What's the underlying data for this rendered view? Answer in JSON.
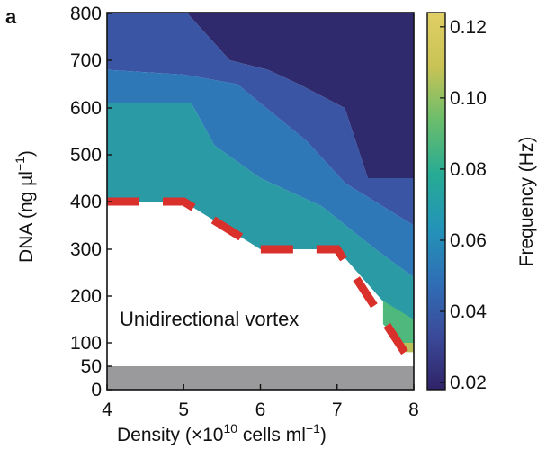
{
  "panel_label": "a",
  "chart_data": {
    "type": "heatmap",
    "xlabel": "Density (×10",
    "xlabel_sup": "10",
    "xlabel_tail": " cells ml",
    "xlabel_tail_sup": "−1",
    "xlabel_close": ")",
    "ylabel": "DNA (ng µl",
    "ylabel_sup": "−1",
    "ylabel_close": ")",
    "xlim": [
      4,
      8
    ],
    "ylim": [
      0,
      800
    ],
    "x_ticks": [
      "4",
      "5",
      "6",
      "7",
      "8"
    ],
    "y_ticks": [
      "0",
      "50",
      "100",
      "200",
      "300",
      "400",
      "500",
      "600",
      "700",
      "800"
    ],
    "y_tick_values": [
      0,
      50,
      100,
      200,
      300,
      400,
      500,
      600,
      700,
      800
    ],
    "annotation": "Unidirectional vortex",
    "colorbar": {
      "label": "Frequency (Hz)",
      "ticks": [
        "0.02",
        "0.04",
        "0.06",
        "0.08",
        "0.10",
        "0.12"
      ],
      "tick_values": [
        0.02,
        0.04,
        0.06,
        0.08,
        0.1,
        0.12
      ],
      "range": [
        0.018,
        0.124
      ],
      "colormap": [
        "#2f2367",
        "#3b4a9a",
        "#2f6fb5",
        "#2394b8",
        "#27ab94",
        "#6abd6c",
        "#c9c355",
        "#e0cf66"
      ]
    },
    "gray_band": {
      "y_range": [
        0,
        50
      ],
      "color": "#9a999b",
      "meaning": ""
    },
    "contour_regions": [
      {
        "frequency": 0.025,
        "color": "#2f2a6d",
        "boundary": [
          [
            5.05,
            800
          ],
          [
            5.6,
            700
          ],
          [
            6.1,
            680
          ],
          [
            6.5,
            650
          ],
          [
            7.1,
            600
          ],
          [
            7.4,
            450
          ],
          [
            8.0,
            450
          ],
          [
            8.0,
            800
          ]
        ]
      },
      {
        "frequency": 0.038,
        "color": "#3a55a4",
        "boundary": [
          [
            4,
            800
          ],
          [
            5.05,
            800
          ],
          [
            5.6,
            700
          ],
          [
            6.1,
            680
          ],
          [
            6.5,
            650
          ],
          [
            7.1,
            600
          ],
          [
            7.4,
            450
          ],
          [
            8.0,
            450
          ],
          [
            8.0,
            350
          ],
          [
            7.1,
            440
          ],
          [
            6.6,
            530
          ],
          [
            6.0,
            610
          ],
          [
            5.7,
            650
          ],
          [
            5.0,
            670
          ],
          [
            4,
            680
          ]
        ]
      },
      {
        "frequency": 0.05,
        "color": "#2e78b8",
        "boundary": [
          [
            4,
            680
          ],
          [
            5.0,
            670
          ],
          [
            5.7,
            650
          ],
          [
            6.0,
            610
          ],
          [
            6.6,
            530
          ],
          [
            7.1,
            440
          ],
          [
            8.0,
            350
          ],
          [
            8.0,
            240
          ],
          [
            7.5,
            300
          ],
          [
            6.8,
            390
          ],
          [
            6.0,
            450
          ],
          [
            5.4,
            520
          ],
          [
            5.1,
            610
          ],
          [
            4,
            610
          ]
        ]
      },
      {
        "frequency": 0.075,
        "color": "#2a9aa5",
        "boundary": [
          [
            4,
            610
          ],
          [
            5.1,
            610
          ],
          [
            5.4,
            520
          ],
          [
            6.0,
            450
          ],
          [
            6.8,
            390
          ],
          [
            7.5,
            300
          ],
          [
            8.0,
            240
          ],
          [
            8.0,
            150
          ],
          [
            7.7,
            170
          ],
          [
            7.0,
            300
          ],
          [
            6.0,
            300
          ],
          [
            5.0,
            400
          ],
          [
            4,
            400
          ]
        ]
      },
      {
        "frequency": 0.088,
        "color": "#4fb87d",
        "boundary": [
          [
            7.6,
            190
          ],
          [
            8.0,
            150
          ],
          [
            8.0,
            100
          ],
          [
            7.85,
            100
          ],
          [
            7.6,
            140
          ]
        ]
      },
      {
        "frequency": 0.105,
        "color": "#bcc05a",
        "boundary": [
          [
            7.85,
            100
          ],
          [
            8.0,
            100
          ],
          [
            8.0,
            80
          ],
          [
            7.9,
            80
          ]
        ]
      }
    ],
    "phase_boundary": {
      "style": "dashed",
      "color": "#d9302c",
      "points": [
        [
          4,
          400
        ],
        [
          5,
          400
        ],
        [
          6,
          300
        ],
        [
          7,
          300
        ],
        [
          8,
          50
        ]
      ]
    }
  }
}
